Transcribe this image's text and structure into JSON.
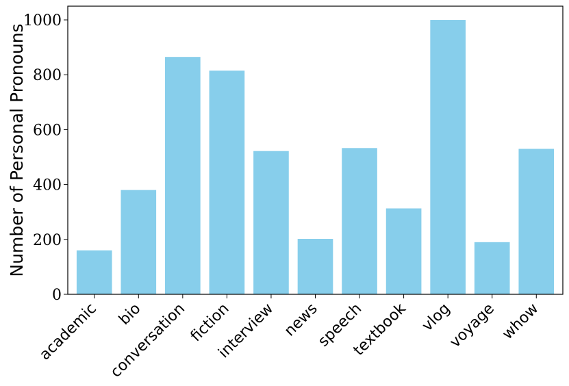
{
  "chart_data": {
    "type": "bar",
    "title": "",
    "xlabel": "",
    "ylabel": "Number of Personal Pronouns",
    "categories": [
      "academic",
      "bio",
      "conversation",
      "fiction",
      "interview",
      "news",
      "speech",
      "textbook",
      "vlog",
      "voyage",
      "whow"
    ],
    "values": [
      160,
      380,
      865,
      815,
      522,
      202,
      533,
      313,
      1000,
      190,
      530
    ],
    "ylim": [
      0,
      1050
    ],
    "yticks": [
      0,
      200,
      400,
      600,
      800,
      1000
    ],
    "bar_color": "#87CEEB",
    "grid": false,
    "legend": "none"
  }
}
